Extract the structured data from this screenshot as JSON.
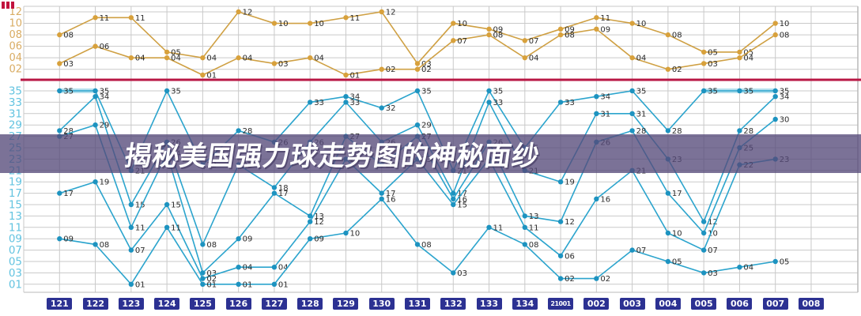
{
  "title_banner": {
    "text": "揭秘美国强力球走势图的神秘面纱"
  },
  "colors": {
    "back_line": "#cfa043",
    "back_dot": "#d8a13c",
    "front_line": "#2ba4cd",
    "front_dot": "#1d93c0",
    "highlight": "#b5e0ed",
    "grid": "#c9c9c9",
    "border": "#b9b9b9",
    "separator": "#b81744",
    "point_label": "#2b2b2b",
    "axis_box_bg": "#2c3192",
    "axis_box_text": "#ffffff",
    "back_tick": "#d9ac63",
    "front_tick": "#63c3e0",
    "banner_bg": "rgba(86,74,122,0.78)",
    "banner_text": "#ffffff"
  },
  "chart_data": {
    "type": "line",
    "grid": true,
    "legend_position": "none",
    "x_labels": [
      "121",
      "122",
      "123",
      "124",
      "125",
      "126",
      "127",
      "128",
      "129",
      "130",
      "131",
      "132",
      "133",
      "134",
      "21001",
      "002",
      "003",
      "004",
      "005",
      "006",
      "007",
      "008"
    ],
    "back_zone": {
      "y_ticks": [
        "12",
        "10",
        "08",
        "06",
        "04",
        "02"
      ],
      "ylim": [
        1,
        12
      ],
      "series": [
        {
          "name": "back-ball-1",
          "values": [
            8,
            11,
            11,
            5,
            4,
            12,
            10,
            10,
            11,
            12,
            3,
            10,
            9,
            7,
            9,
            11,
            10,
            8,
            5,
            5,
            10,
            null
          ]
        },
        {
          "name": "back-ball-2",
          "values": [
            3,
            6,
            4,
            4,
            1,
            4,
            3,
            4,
            1,
            2,
            2,
            7,
            8,
            4,
            8,
            9,
            4,
            2,
            3,
            4,
            8,
            null
          ]
        }
      ]
    },
    "front_zone": {
      "y_ticks": [
        "35",
        "33",
        "31",
        "29",
        "27",
        "25",
        "23",
        "21",
        "19",
        "17",
        "15",
        "13",
        "11",
        "09",
        "07",
        "05",
        "03",
        "01"
      ],
      "ylim": [
        1,
        35
      ],
      "series": [
        {
          "name": "front-rank-1",
          "values": [
            35,
            35,
            21,
            35,
            22,
            28,
            26,
            33,
            34,
            32,
            35,
            21,
            35,
            25,
            33,
            34,
            35,
            28,
            35,
            35,
            35,
            null
          ]
        },
        {
          "name": "front-rank-2",
          "values": [
            28,
            34,
            15,
            26,
            8,
            22,
            18,
            26,
            33,
            26,
            29,
            17,
            33,
            21,
            19,
            31,
            31,
            23,
            12,
            28,
            34,
            null
          ]
        },
        {
          "name": "front-rank-3",
          "values": [
            27,
            29,
            11,
            24,
            3,
            9,
            17,
            13,
            27,
            22,
            27,
            16,
            26,
            13,
            12,
            26,
            28,
            17,
            10,
            25,
            30,
            null
          ]
        },
        {
          "name": "front-rank-4",
          "values": [
            17,
            19,
            7,
            15,
            2,
            4,
            4,
            12,
            23,
            17,
            23,
            15,
            23,
            11,
            6,
            16,
            21,
            10,
            7,
            22,
            23,
            null
          ]
        },
        {
          "name": "front-rank-5",
          "values": [
            9,
            8,
            1,
            11,
            1,
            1,
            1,
            9,
            10,
            16,
            8,
            3,
            11,
            8,
            2,
            2,
            7,
            5,
            3,
            4,
            5,
            null
          ]
        }
      ],
      "highlight_runs": [
        {
          "series_index": 0,
          "from_index": 0,
          "to_index": 1,
          "value": 35
        },
        {
          "series_index": 0,
          "from_index": 18,
          "to_index": 20,
          "value": 35
        }
      ]
    }
  }
}
